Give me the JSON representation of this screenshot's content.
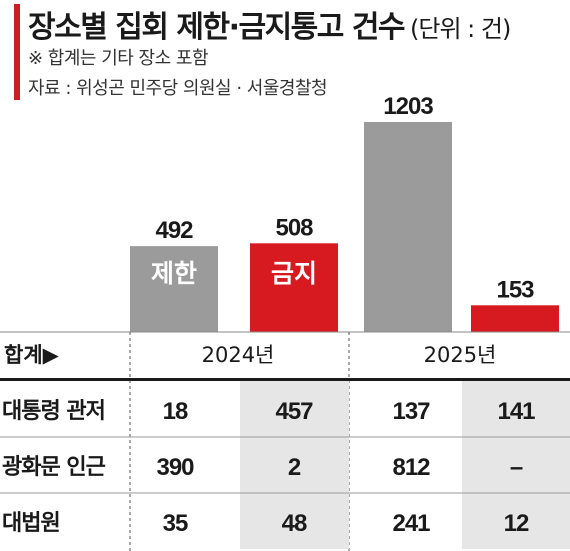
{
  "title": "장소별 집회 제한·금지통고 건수",
  "unit": "(단위 : 건)",
  "note": "※ 합계는 기타 장소 포함",
  "source": "자료 : 위성곤 민주당 의원실 · 서울경찰청",
  "colors": {
    "gray": "#9b9b9b",
    "red": "#d71920",
    "dark": "#1a1a1a",
    "tableBand": "#e6e6e6"
  },
  "chart_data": {
    "type": "bar",
    "categories": [
      "2024년",
      "2025년"
    ],
    "series": [
      {
        "name": "제한",
        "values": [
          492,
          1203
        ],
        "color": "#9b9b9b"
      },
      {
        "name": "금지",
        "values": [
          508,
          153
        ],
        "color": "#d71920"
      }
    ],
    "row_header": "합계▶",
    "table": {
      "rows": [
        {
          "label": "대통령 관저",
          "values": [
            "18",
            "457",
            "137",
            "141"
          ]
        },
        {
          "label": "광화문 인근",
          "values": [
            "390",
            "2",
            "812",
            "–"
          ]
        },
        {
          "label": "대법원",
          "values": [
            "35",
            "48",
            "241",
            "12"
          ]
        }
      ]
    }
  }
}
